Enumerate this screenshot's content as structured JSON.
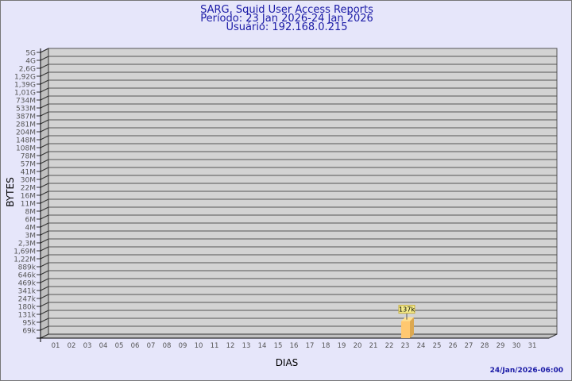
{
  "header": {
    "title": "SARG, Squid User Access Reports",
    "period": "Período: 23 Jan 2026-24 Jan 2026",
    "user": "Usuário: 192.168.0.215"
  },
  "footer": {
    "timestamp": "24/Jan/2026-06:00"
  },
  "chart_data": {
    "type": "bar",
    "xlabel": "DIAS",
    "ylabel": "BYTES",
    "yscale": "log",
    "y_ticks": [
      "5G",
      "4G",
      "2,6G",
      "1,92G",
      "1,39G",
      "1,01G",
      "734M",
      "533M",
      "387M",
      "281M",
      "204M",
      "148M",
      "108M",
      "78M",
      "57M",
      "41M",
      "30M",
      "22M",
      "16M",
      "11M",
      "8M",
      "6M",
      "4M",
      "3M",
      "2,3M",
      "1,69M",
      "1,22M",
      "889k",
      "646k",
      "469k",
      "341k",
      "247k",
      "180k",
      "131k",
      "95k",
      "69k"
    ],
    "categories": [
      "01",
      "02",
      "03",
      "04",
      "05",
      "06",
      "07",
      "08",
      "09",
      "10",
      "11",
      "12",
      "13",
      "14",
      "15",
      "16",
      "17",
      "18",
      "19",
      "20",
      "21",
      "22",
      "23",
      "24",
      "25",
      "26",
      "27",
      "28",
      "29",
      "30",
      "31"
    ],
    "values": [
      0,
      0,
      0,
      0,
      0,
      0,
      0,
      0,
      0,
      0,
      0,
      0,
      0,
      0,
      0,
      0,
      0,
      0,
      0,
      0,
      0,
      0,
      137000,
      0,
      0,
      0,
      0,
      0,
      0,
      0,
      0
    ],
    "data_labels": {
      "23": "137k"
    },
    "grid": true,
    "colors": {
      "bar": "#ffc870",
      "bar_side": "#dca850",
      "panel": "#d3d3d3",
      "label_bg": "#f5ec8c"
    }
  }
}
